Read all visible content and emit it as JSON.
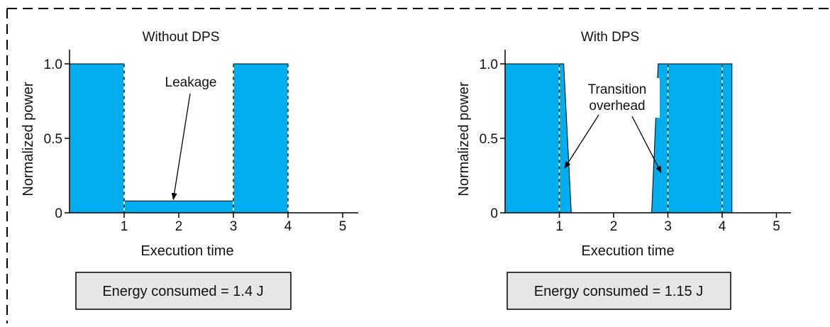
{
  "colors": {
    "fill": "#00aeef",
    "box_fill": "#e6e6e6",
    "axis": "#000000",
    "dashed_marker": "#ffff99"
  },
  "chart_data": [
    {
      "type": "area",
      "title": "Without DPS",
      "xlabel": "Execution time",
      "ylabel": "Normalized power",
      "xlim": [
        0,
        5.3
      ],
      "ylim": [
        0,
        1.0
      ],
      "xticks": [
        "1",
        "2",
        "3",
        "4",
        "5"
      ],
      "yticks": [
        "0",
        "0.5",
        "1.0"
      ],
      "series": [
        {
          "x": [
            0,
            1,
            1,
            3,
            3,
            4,
            4
          ],
          "y": [
            1.0,
            1.0,
            0.08,
            0.08,
            1.0,
            1.0,
            0
          ]
        }
      ],
      "dashed_markers": [
        1,
        3,
        4
      ],
      "annotation": {
        "text": "Leakage",
        "target": [
          1.9,
          0.08
        ]
      },
      "energy_label": "Energy consumed = 1.4 J"
    },
    {
      "type": "area",
      "title": "With DPS",
      "xlabel": "Execution time",
      "ylabel": "Normalized power",
      "xlim": [
        0,
        5.3
      ],
      "ylim": [
        0,
        1.0
      ],
      "xticks": [
        "1",
        "2",
        "3",
        "4",
        "5"
      ],
      "yticks": [
        "0",
        "0.5",
        "1.0"
      ],
      "series": [
        {
          "x": [
            0,
            1.0,
            1.08,
            1.22,
            1.22,
            2.7,
            2.7,
            2.82,
            4.0,
            4.18,
            4.18
          ],
          "y": [
            1.0,
            1.0,
            1.0,
            0,
            0,
            0,
            0,
            1.0,
            1.0,
            1.0,
            0
          ]
        }
      ],
      "dashed_markers": [
        1,
        3,
        4
      ],
      "annotation": {
        "lines": [
          "Transition",
          "overhead"
        ],
        "targets": [
          [
            1.15,
            0.3
          ],
          [
            2.9,
            0.27
          ]
        ]
      },
      "energy_label": "Energy consumed = 1.15 J"
    }
  ]
}
